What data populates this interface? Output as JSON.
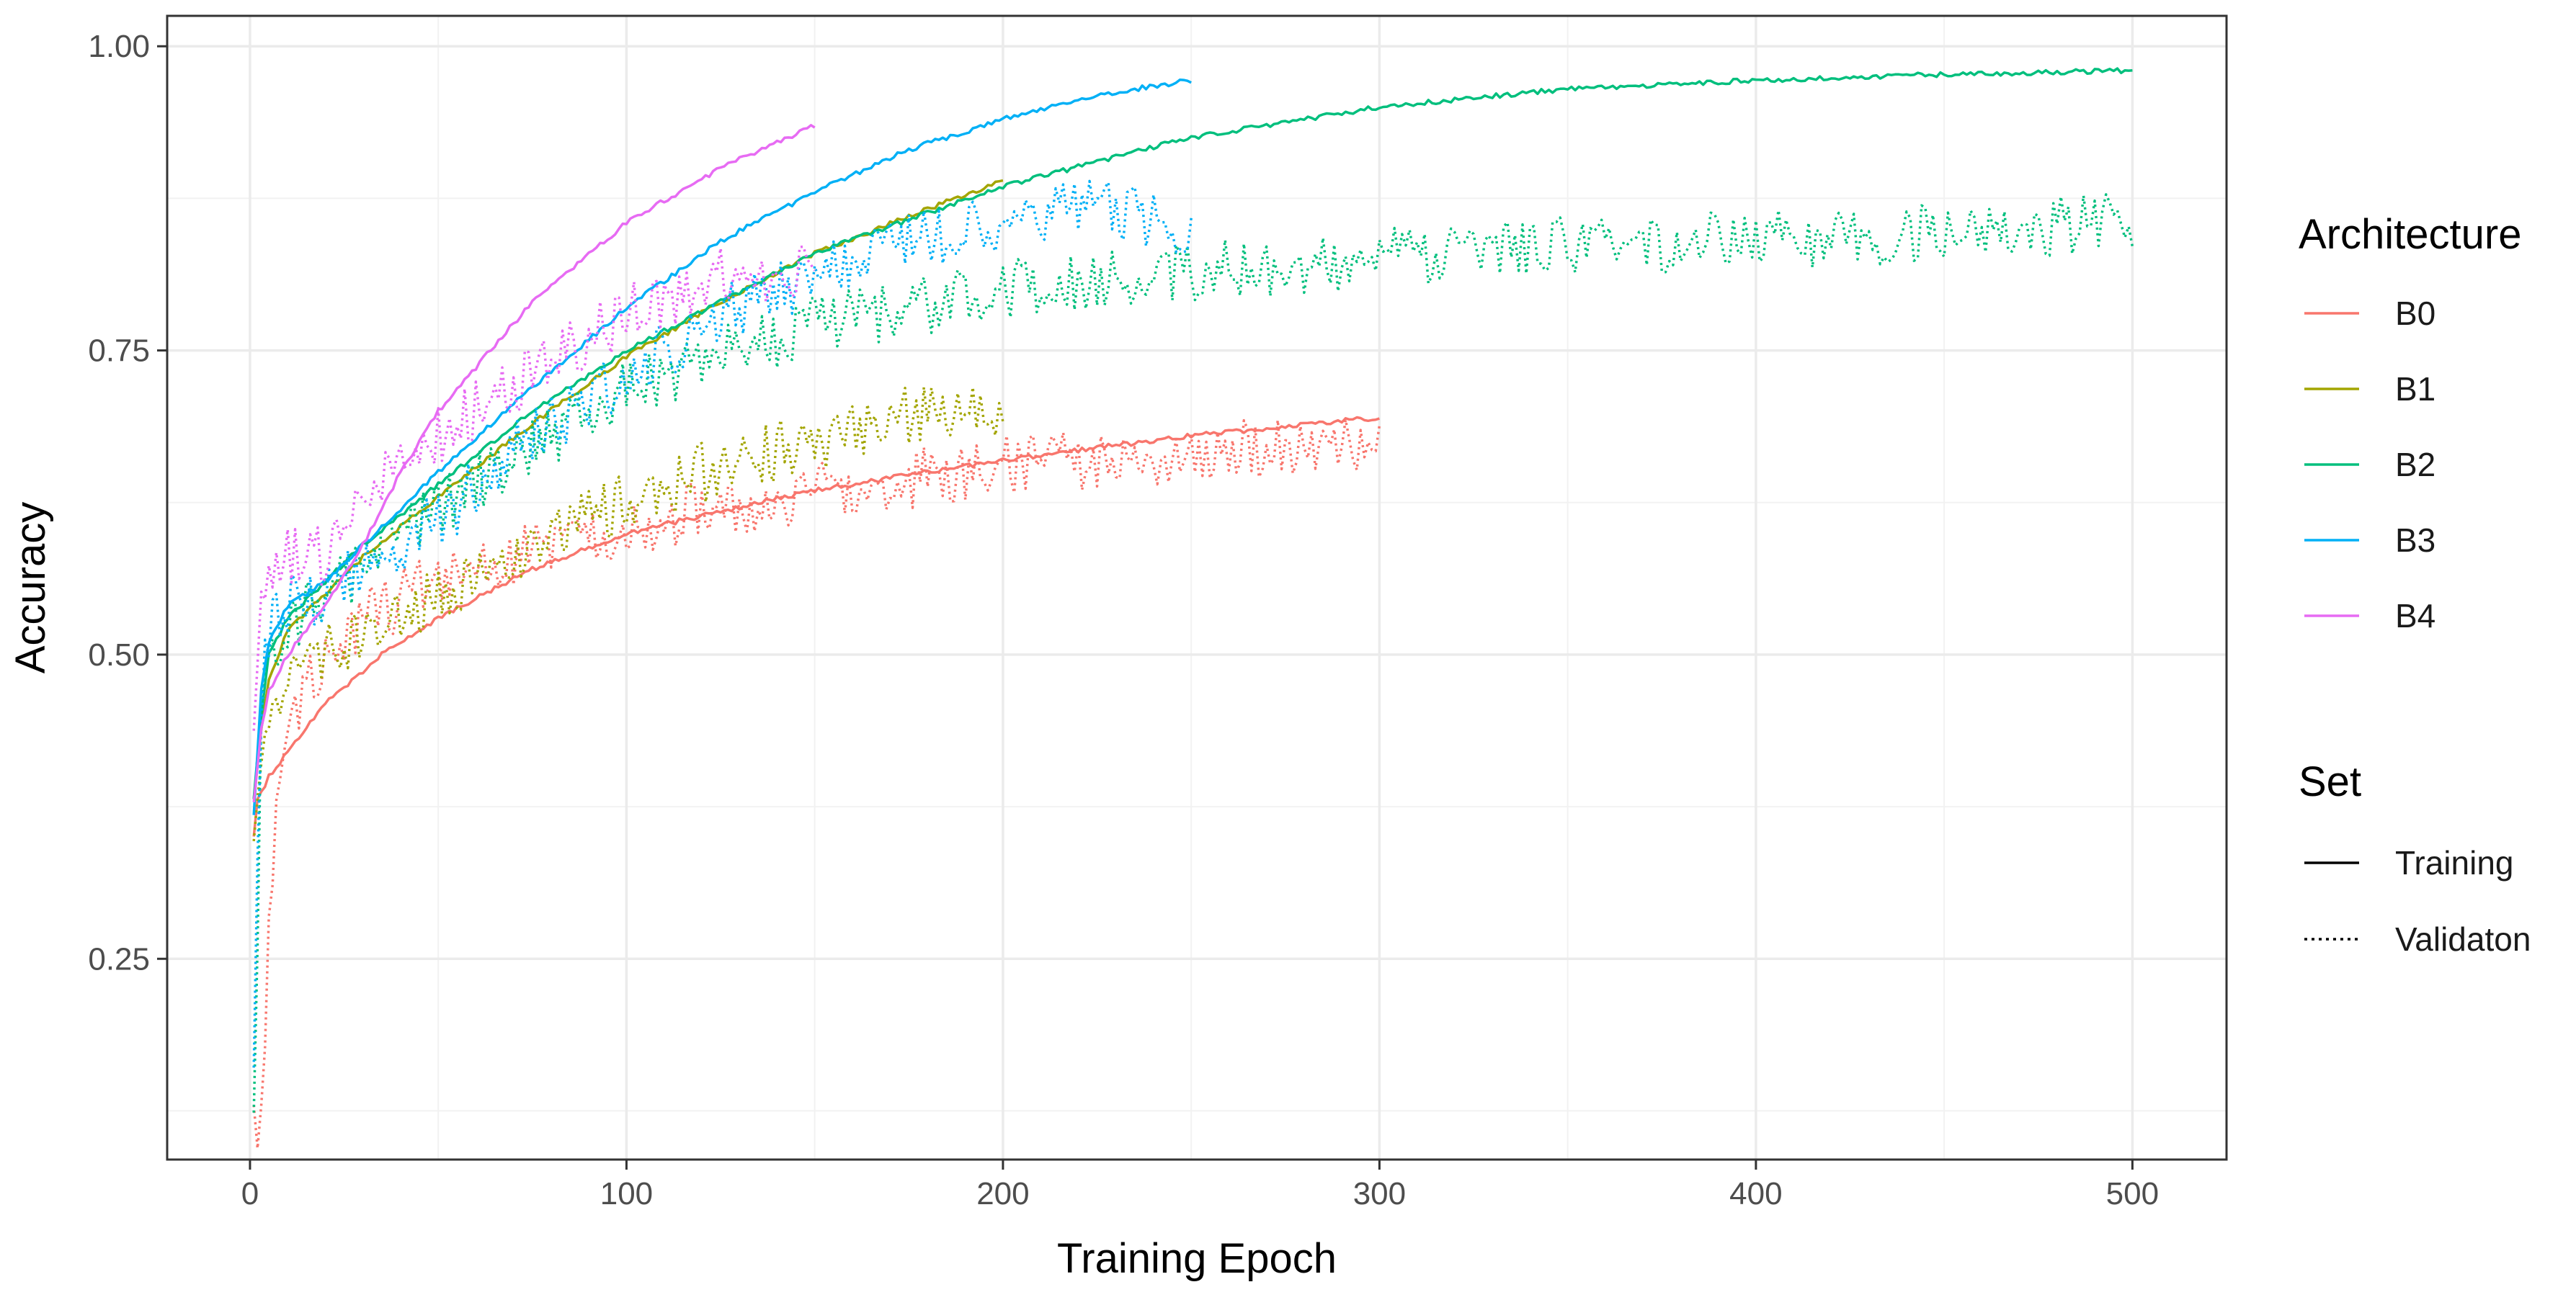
{
  "chart_data": {
    "type": "line",
    "xlabel": "Training Epoch",
    "ylabel": "Accuracy",
    "xlim": [
      -22,
      525
    ],
    "ylim": [
      0.085,
      1.025
    ],
    "xticks": [
      0,
      100,
      200,
      300,
      400,
      500
    ],
    "xtick_labels": [
      "0",
      "100",
      "200",
      "300",
      "400",
      "500"
    ],
    "yticks": [
      0.25,
      0.5,
      0.75,
      1.0
    ],
    "ytick_labels": [
      "0.25",
      "0.50",
      "0.75",
      "1.00"
    ],
    "grid": true,
    "legend_position": "right",
    "legends": [
      {
        "title": "Architecture",
        "entries": [
          {
            "label": "B0",
            "color": "#F8766D"
          },
          {
            "label": "B1",
            "color": "#A3A500"
          },
          {
            "label": "B2",
            "color": "#00BF7D"
          },
          {
            "label": "B3",
            "color": "#00B0F6"
          },
          {
            "label": "B4",
            "color": "#E76BF3"
          }
        ]
      },
      {
        "title": "Set",
        "entries": [
          {
            "label": "Training",
            "linetype": "solid"
          },
          {
            "label": "Validaton",
            "linetype": "dotted"
          }
        ]
      }
    ],
    "series": [
      {
        "architecture": "B0",
        "set": "Training",
        "color": "#F8766D",
        "linetype": "solid",
        "x": [
          1,
          2,
          5,
          10,
          20,
          35,
          50,
          75,
          100,
          150,
          200,
          250,
          300
        ],
        "y": [
          0.35,
          0.38,
          0.4,
          0.42,
          0.46,
          0.5,
          0.53,
          0.57,
          0.6,
          0.635,
          0.66,
          0.68,
          0.695
        ]
      },
      {
        "architecture": "B0",
        "set": "Validaton",
        "color": "#F8766D",
        "linetype": "dotted",
        "x": [
          1,
          3,
          5,
          8,
          15,
          30,
          50,
          75,
          100,
          150,
          200,
          250,
          300
        ],
        "y": [
          0.12,
          0.11,
          0.28,
          0.42,
          0.48,
          0.53,
          0.56,
          0.585,
          0.605,
          0.635,
          0.655,
          0.665,
          0.675
        ]
      },
      {
        "architecture": "B1",
        "set": "Training",
        "color": "#A3A500",
        "linetype": "solid",
        "x": [
          1,
          3,
          5,
          10,
          20,
          30,
          50,
          75,
          100,
          125,
          150,
          175,
          200
        ],
        "y": [
          0.38,
          0.44,
          0.48,
          0.52,
          0.55,
          0.58,
          0.63,
          0.69,
          0.745,
          0.79,
          0.83,
          0.86,
          0.89
        ]
      },
      {
        "architecture": "B1",
        "set": "Validaton",
        "color": "#A3A500",
        "linetype": "dotted",
        "x": [
          1,
          3,
          5,
          10,
          20,
          30,
          50,
          75,
          100,
          125,
          150,
          175,
          200
        ],
        "y": [
          0.33,
          0.42,
          0.46,
          0.48,
          0.5,
          0.51,
          0.55,
          0.59,
          0.625,
          0.655,
          0.675,
          0.695,
          0.705
        ]
      },
      {
        "architecture": "B2",
        "set": "Training",
        "color": "#00BF7D",
        "linetype": "solid",
        "x": [
          1,
          3,
          5,
          10,
          20,
          30,
          50,
          75,
          100,
          150,
          200,
          250,
          300,
          350,
          400,
          450,
          500
        ],
        "y": [
          0.38,
          0.45,
          0.5,
          0.53,
          0.56,
          0.59,
          0.64,
          0.7,
          0.75,
          0.83,
          0.885,
          0.925,
          0.95,
          0.965,
          0.972,
          0.977,
          0.98
        ]
      },
      {
        "architecture": "B2",
        "set": "Validaton",
        "color": "#00BF7D",
        "linetype": "dotted",
        "x": [
          1,
          3,
          5,
          10,
          20,
          30,
          50,
          75,
          100,
          150,
          200,
          250,
          300,
          350,
          400,
          450,
          500
        ],
        "y": [
          0.1,
          0.45,
          0.5,
          0.52,
          0.55,
          0.57,
          0.62,
          0.67,
          0.72,
          0.77,
          0.8,
          0.815,
          0.825,
          0.835,
          0.84,
          0.848,
          0.855
        ]
      },
      {
        "architecture": "B3",
        "set": "Training",
        "color": "#00B0F6",
        "linetype": "solid",
        "x": [
          1,
          3,
          5,
          10,
          20,
          30,
          50,
          75,
          100,
          125,
          150,
          175,
          200,
          225,
          250
        ],
        "y": [
          0.37,
          0.47,
          0.51,
          0.54,
          0.56,
          0.59,
          0.65,
          0.72,
          0.785,
          0.84,
          0.88,
          0.915,
          0.94,
          0.96,
          0.972
        ]
      },
      {
        "architecture": "B3",
        "set": "Validaton",
        "color": "#00B0F6",
        "linetype": "dotted",
        "x": [
          1,
          3,
          5,
          10,
          20,
          30,
          50,
          75,
          100,
          125,
          150,
          175,
          200,
          225,
          250
        ],
        "y": [
          0.18,
          0.46,
          0.52,
          0.54,
          0.55,
          0.57,
          0.61,
          0.68,
          0.73,
          0.78,
          0.81,
          0.84,
          0.855,
          0.87,
          0.85
        ]
      },
      {
        "architecture": "B4",
        "set": "Training",
        "color": "#E76BF3",
        "linetype": "solid",
        "x": [
          1,
          3,
          5,
          10,
          20,
          30,
          40,
          50,
          75,
          100,
          125,
          150
        ],
        "y": [
          0.38,
          0.44,
          0.47,
          0.5,
          0.54,
          0.59,
          0.65,
          0.7,
          0.79,
          0.855,
          0.9,
          0.935
        ]
      },
      {
        "architecture": "B4",
        "set": "Validaton",
        "color": "#E76BF3",
        "linetype": "dotted",
        "x": [
          1,
          3,
          5,
          10,
          20,
          30,
          50,
          75,
          100,
          125,
          150
        ],
        "y": [
          0.45,
          0.55,
          0.57,
          0.58,
          0.58,
          0.63,
          0.68,
          0.73,
          0.78,
          0.81,
          0.82
        ]
      }
    ]
  }
}
